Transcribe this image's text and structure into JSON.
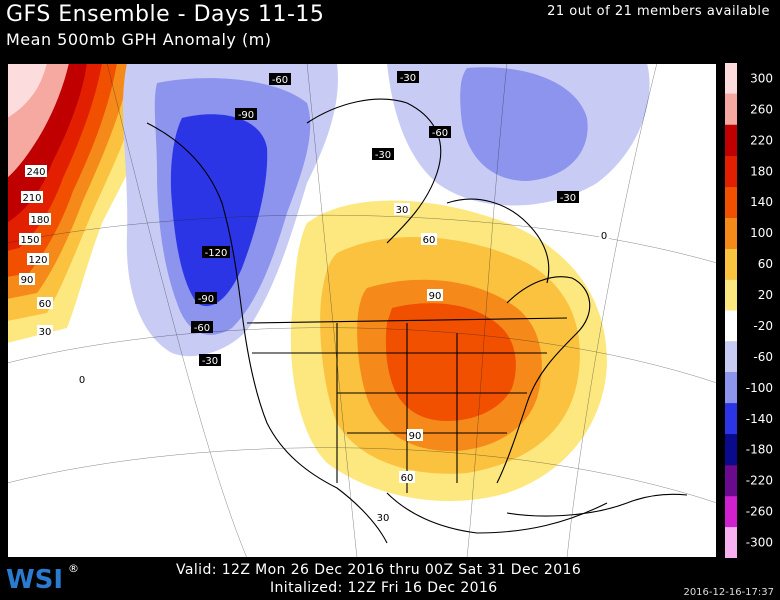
{
  "header": {
    "title": "GFS Ensemble - Days 11-15",
    "subtitle": "Mean 500mb GPH Anomaly (m)",
    "members": "21 out of 21 members available"
  },
  "footer": {
    "valid": "Valid: 12Z Mon 26 Dec 2016 thru 00Z Sat 31 Dec 2016",
    "initialized": "Initalized: 12Z Fri 16 Dec 2016",
    "timestamp": "2016-12-16-17:37",
    "logo": "WSI"
  },
  "legend": {
    "levels": [
      "300",
      "260",
      "220",
      "180",
      "140",
      "100",
      "60",
      "20",
      "-20",
      "-60",
      "-100",
      "-140",
      "-180",
      "-220",
      "-260",
      "-300"
    ],
    "colors": [
      "#fcdcdc",
      "#f5a9a1",
      "#c00000",
      "#e22000",
      "#f05000",
      "#f58a1a",
      "#fbc240",
      "#fde880",
      "#ffffff",
      "#c8ccf5",
      "#8c94ee",
      "#2b35e5",
      "#0a0a8c",
      "#6a0a8c",
      "#d020d0",
      "#f8b0f0"
    ]
  },
  "map": {
    "contour_labels": [
      {
        "text": "240",
        "kind": "pos"
      },
      {
        "text": "210",
        "kind": "pos"
      },
      {
        "text": "180",
        "kind": "pos"
      },
      {
        "text": "150",
        "kind": "pos"
      },
      {
        "text": "120",
        "kind": "pos"
      },
      {
        "text": "90",
        "kind": "pos"
      },
      {
        "text": "60",
        "kind": "pos"
      },
      {
        "text": "30",
        "kind": "pos"
      },
      {
        "text": "0",
        "kind": "pos"
      },
      {
        "text": "-60",
        "kind": "neg"
      },
      {
        "text": "-90",
        "kind": "neg"
      },
      {
        "text": "-30",
        "kind": "neg"
      },
      {
        "text": "-120",
        "kind": "neg"
      },
      {
        "text": "-90",
        "kind": "neg"
      },
      {
        "text": "-60",
        "kind": "neg"
      },
      {
        "text": "-30",
        "kind": "neg"
      },
      {
        "text": "-30",
        "kind": "neg"
      },
      {
        "text": "-60",
        "kind": "neg"
      },
      {
        "text": "-30",
        "kind": "neg"
      },
      {
        "text": "0",
        "kind": "pos"
      },
      {
        "text": "30",
        "kind": "pos"
      },
      {
        "text": "60",
        "kind": "pos"
      },
      {
        "text": "90",
        "kind": "pos"
      },
      {
        "text": "90",
        "kind": "pos"
      },
      {
        "text": "60",
        "kind": "pos"
      },
      {
        "text": "30",
        "kind": "pos"
      }
    ]
  }
}
